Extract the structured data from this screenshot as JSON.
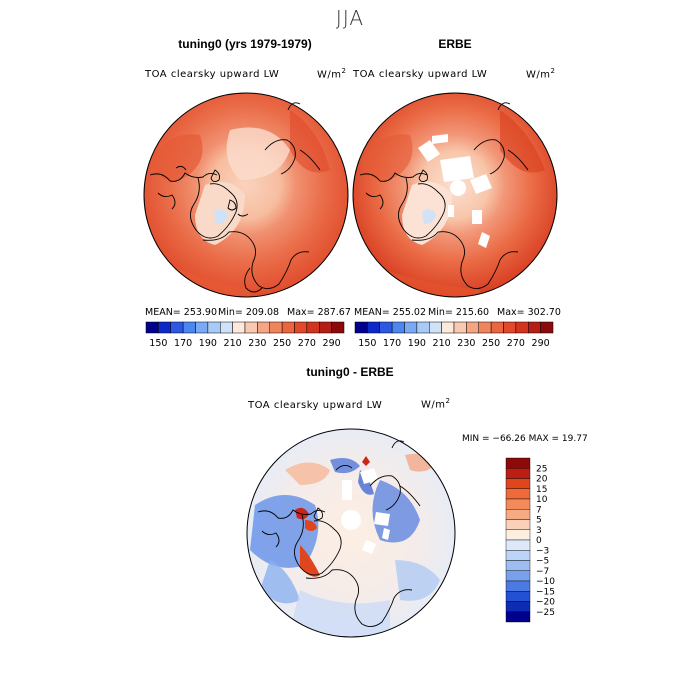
{
  "figure": {
    "season": "JJA",
    "variable": "TOA clearsky upward LW",
    "units_base": "W/m",
    "units_exp": "2"
  },
  "panels": {
    "model": {
      "title": "tuning0 (yrs 1979-1979)",
      "mean": "MEAN= 253.90",
      "min": "Min= 209.08",
      "max": "Max= 287.67"
    },
    "obs": {
      "title": "ERBE",
      "mean": "MEAN= 255.02",
      "min": "Min= 215.60",
      "max": "Max= 302.70"
    },
    "diff": {
      "title": "tuning0 - ERBE",
      "minmax": "MIN = −66.26 MAX =  19.77"
    }
  },
  "colorbar_main": {
    "tick_labels": [
      "150",
      "170",
      "190",
      "210",
      "230",
      "250",
      "270",
      "290"
    ],
    "colors": [
      "#00008c",
      "#0c28c8",
      "#2c58e4",
      "#4c86f0",
      "#7aaaf4",
      "#a8caf6",
      "#cfe2f8",
      "#fde8dc",
      "#f8c8b0",
      "#f4a684",
      "#ef855c",
      "#ea6640",
      "#e2482c",
      "#d2341e",
      "#b41e14",
      "#8c0a0a"
    ]
  },
  "colorbar_diff": {
    "labels": [
      "25",
      "20",
      "15",
      "10",
      "7",
      "5",
      "3",
      "0",
      "−3",
      "−5",
      "−7",
      "−10",
      "−15",
      "−20",
      "−25"
    ],
    "colors": [
      "#8c0a0a",
      "#bc1e14",
      "#e0461e",
      "#ee6a3a",
      "#f28a5a",
      "#f6aa84",
      "#fad0b8",
      "#fdeee2",
      "#dde9fa",
      "#bcd4f6",
      "#9cbcf2",
      "#78a0ec",
      "#4c7ae4",
      "#2450d4",
      "#0c2cb4",
      "#00008c"
    ]
  },
  "chart_data": {
    "type": "heatmap",
    "title": "JJA",
    "panels": [
      {
        "title": "tuning0 (yrs 1979-1979)",
        "variable": "TOA clearsky upward LW",
        "units": "W/m2",
        "mean": 253.9,
        "min": 209.08,
        "max": 287.67
      },
      {
        "title": "ERBE",
        "variable": "TOA clearsky upward LW",
        "units": "W/m2",
        "mean": 255.02,
        "min": 215.6,
        "max": 302.7
      },
      {
        "title": "tuning0 - ERBE",
        "variable": "TOA clearsky upward LW",
        "units": "W/m2",
        "min": -66.26,
        "max": 19.77
      }
    ],
    "colorbar_levels": [
      150,
      170,
      190,
      210,
      230,
      250,
      270,
      290
    ],
    "diff_levels": [
      -25,
      -20,
      -15,
      -10,
      -7,
      -5,
      -3,
      0,
      3,
      5,
      7,
      10,
      15,
      20,
      25
    ]
  }
}
